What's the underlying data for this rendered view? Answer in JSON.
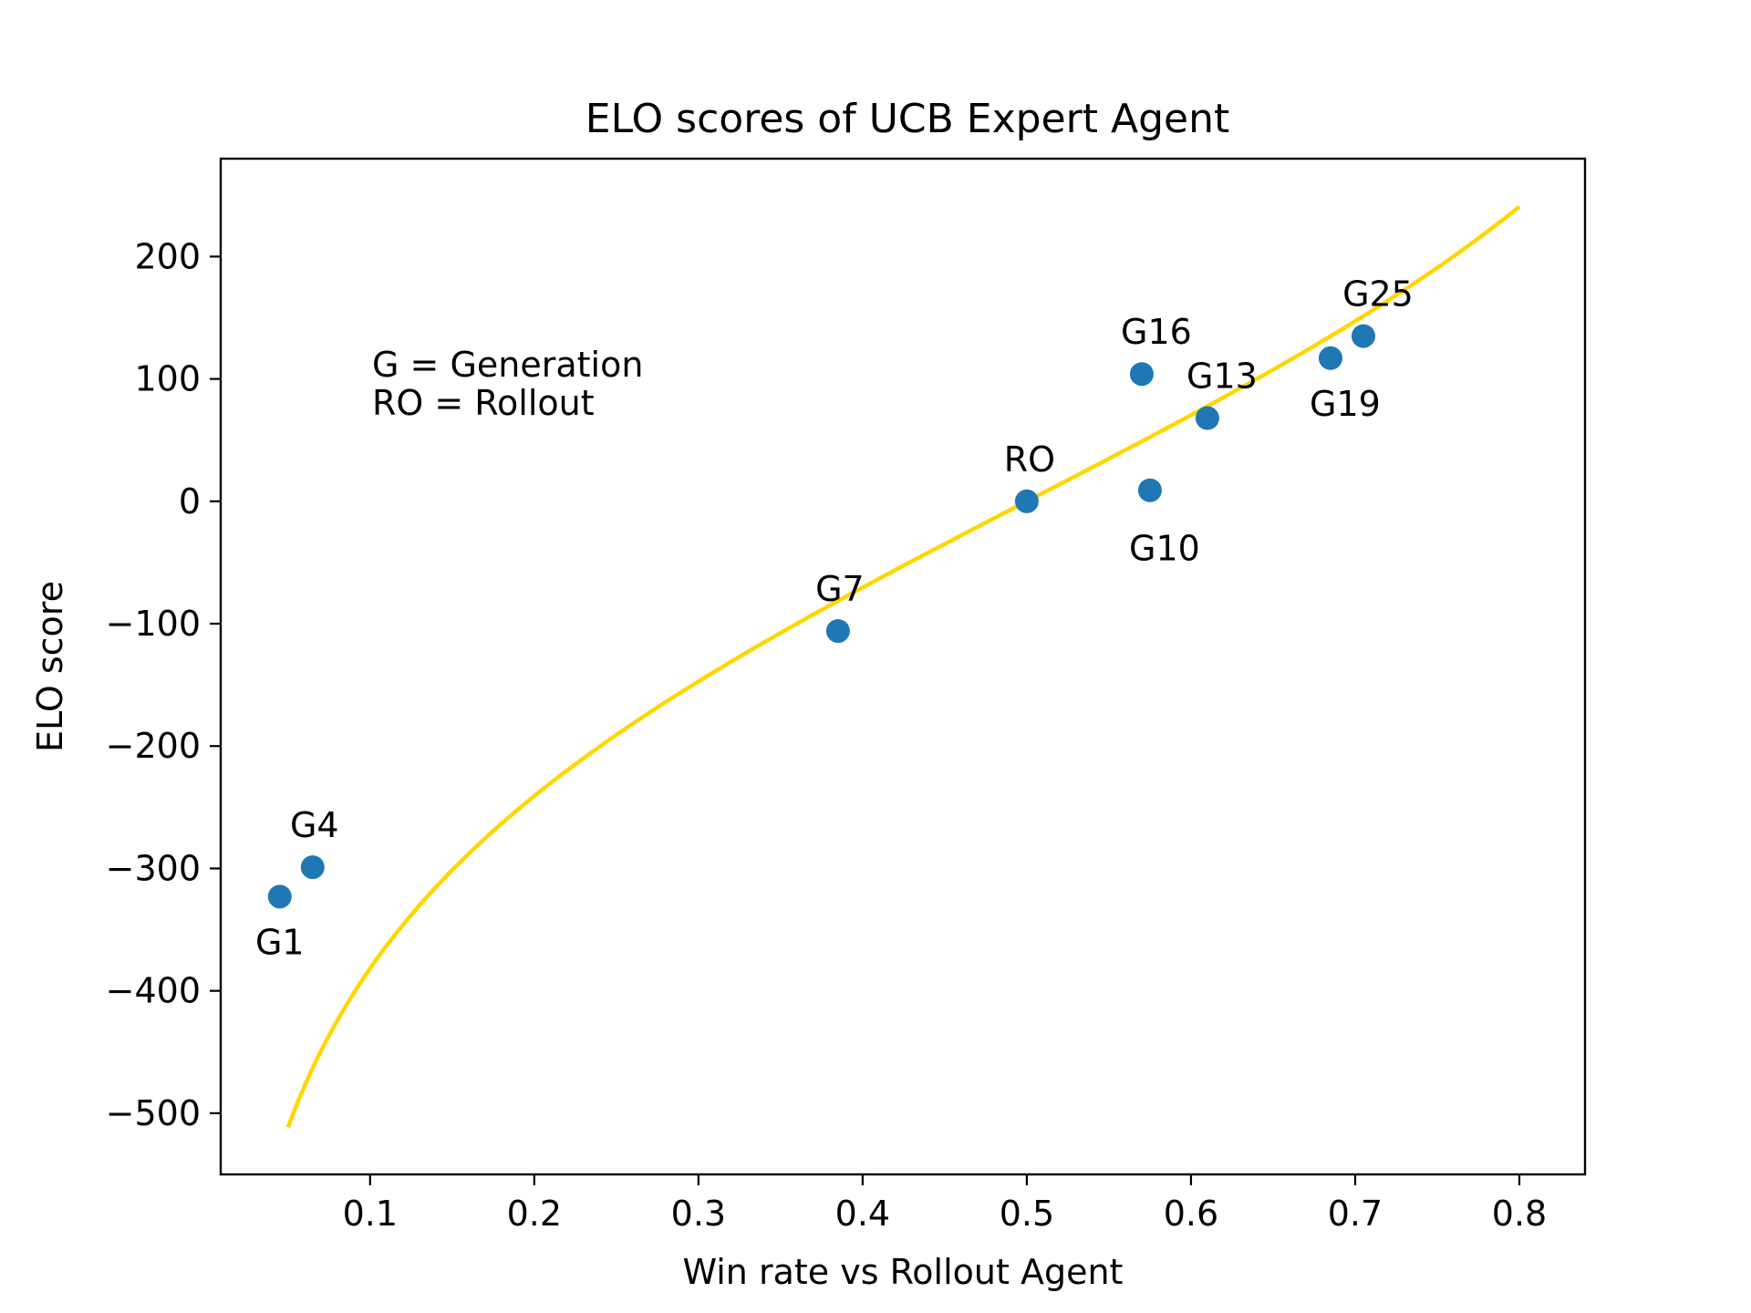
{
  "chart_data": {
    "type": "scatter",
    "title": "ELO scores of UCB Expert Agent",
    "xlabel": "Win rate vs Rollout Agent",
    "ylabel": "ELO score",
    "xlim": [
      0.009,
      0.84
    ],
    "ylim": [
      -550,
      280
    ],
    "xticks": [
      0.1,
      0.2,
      0.3,
      0.4,
      0.5,
      0.6,
      0.7,
      0.8
    ],
    "xtick_labels": [
      "0.1",
      "0.2",
      "0.3",
      "0.4",
      "0.5",
      "0.6",
      "0.7",
      "0.8"
    ],
    "yticks": [
      -500,
      -400,
      -300,
      -200,
      -100,
      0,
      100,
      200
    ],
    "ytick_labels": [
      "−500",
      "−400",
      "−300",
      "−200",
      "−100",
      "0",
      "100",
      "200"
    ],
    "grid": false,
    "annotations": [
      "G = Generation",
      "RO = Rollout"
    ],
    "points": [
      {
        "label": "G1",
        "x": 0.045,
        "y": -323
      },
      {
        "label": "G4",
        "x": 0.065,
        "y": -299
      },
      {
        "label": "G7",
        "x": 0.385,
        "y": -106
      },
      {
        "label": "RO",
        "x": 0.5,
        "y": 0
      },
      {
        "label": "G10",
        "x": 0.575,
        "y": 9
      },
      {
        "label": "G16",
        "x": 0.57,
        "y": 104
      },
      {
        "label": "G13",
        "x": 0.61,
        "y": 68
      },
      {
        "label": "G19",
        "x": 0.685,
        "y": 117
      },
      {
        "label": "G25",
        "x": 0.705,
        "y": 135
      }
    ],
    "curve": {
      "relation": "ELO = 400 * log10(p / (1 - p))",
      "x_range": [
        0.05,
        0.8
      ]
    },
    "colors": {
      "points": "#1f77b4",
      "curve": "#ffd700",
      "axes": "#000000"
    }
  }
}
